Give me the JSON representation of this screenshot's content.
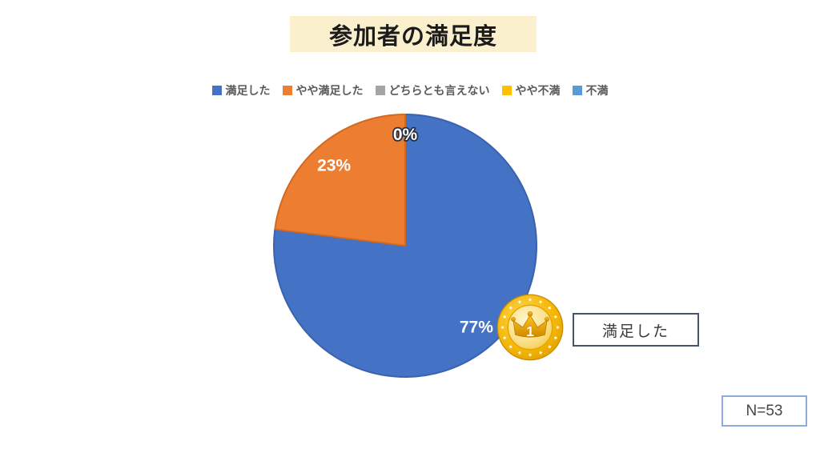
{
  "title": "参加者の満足度",
  "chart_data": {
    "type": "pie",
    "title": "参加者の満足度",
    "categories": [
      "満足した",
      "やや満足した",
      "どちらとも言えない",
      "やや不満",
      "不満"
    ],
    "values": [
      77,
      23,
      0,
      0,
      0
    ],
    "unit": "%",
    "visible_data_labels": [
      "0%",
      "23%",
      "77%"
    ],
    "colors": [
      "#4472C4",
      "#ED7D31",
      "#A5A5A5",
      "#FFC000",
      "#5B9BD5"
    ],
    "slice_edge_colors": [
      "#3A62AE",
      "#D2691E",
      "#8C8C8C",
      "#D9A400",
      "#4A88C0"
    ],
    "legend_position": "top",
    "start_angle_deg": 0,
    "direction": "clockwise"
  },
  "legend": {
    "text_color": "#595959"
  },
  "annotations": {
    "medal_rank": "1",
    "winner_label": "満足した",
    "sample_size": "N=53"
  },
  "style": {
    "title_bg": "#FBF0CE",
    "winner_box_border": "#44546A",
    "sample_box_border": "#8FAADC",
    "data_label_color": "#FFFFFF",
    "zero_label_outline": "#262D40",
    "medal_gold": "#F2B705"
  }
}
